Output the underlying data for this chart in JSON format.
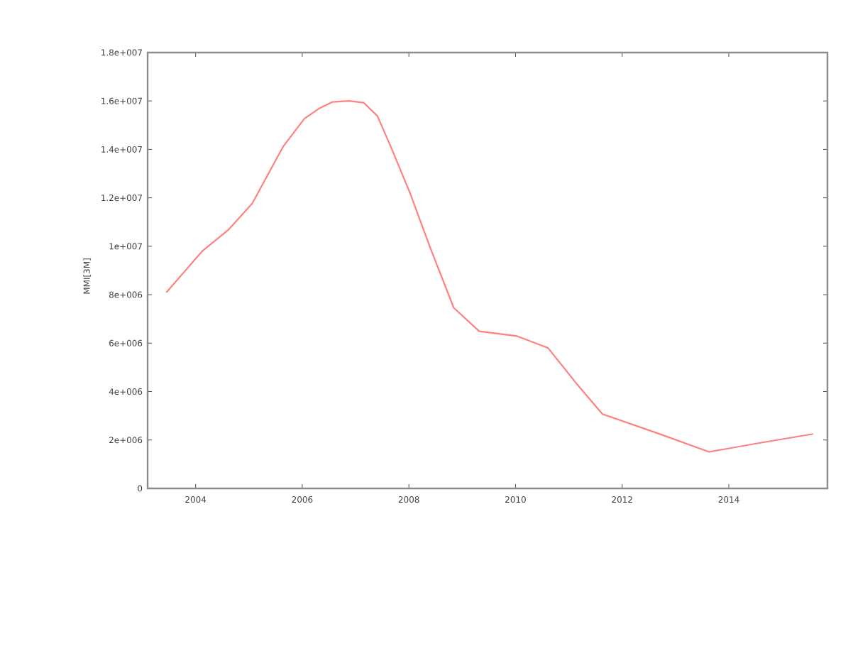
{
  "chart_data": {
    "type": "line",
    "ylabel": "MMI[3M]",
    "x": [
      2003.45,
      2004.13,
      2004.62,
      2005.06,
      2005.64,
      2006.04,
      2006.31,
      2006.57,
      2006.88,
      2007.15,
      2007.41,
      2007.68,
      2008.03,
      2008.39,
      2008.84,
      2009.32,
      2010.03,
      2010.61,
      2011.14,
      2011.63,
      2012.65,
      2013.63,
      2014.61,
      2015.58
    ],
    "series": [
      {
        "color": "#ff8080",
        "values": [
          8090000,
          9810000,
          10690000,
          11760000,
          14110000,
          15270000,
          15680000,
          15960000,
          16000000,
          15930000,
          15380000,
          14010000,
          12150000,
          10000000,
          7460000,
          6490000,
          6290000,
          5800000,
          4340000,
          3070000,
          2290000,
          1510000,
          1890000,
          2250000
        ]
      }
    ],
    "xlim": [
      2003.1,
      2015.85
    ],
    "ylim": [
      0,
      18000000
    ],
    "xticks": [
      2004,
      2006,
      2008,
      2010,
      2012,
      2014
    ],
    "yticks": [
      0,
      {
        "value": 2000000,
        "label": "2e+006"
      },
      {
        "value": 4000000,
        "label": "4e+006"
      },
      {
        "value": 6000000,
        "label": "6e+006"
      },
      {
        "value": 8000000,
        "label": "8e+006"
      },
      {
        "value": 10000000,
        "label": "1e+007"
      },
      {
        "value": 12000000,
        "label": "1.2e+007"
      },
      {
        "value": 14000000,
        "label": "1.4e+007"
      },
      {
        "value": 16000000,
        "label": "1.6e+007"
      },
      {
        "value": 18000000,
        "label": "1.8e+007"
      }
    ],
    "grid": false,
    "marker": "none",
    "line_style": "solid"
  }
}
